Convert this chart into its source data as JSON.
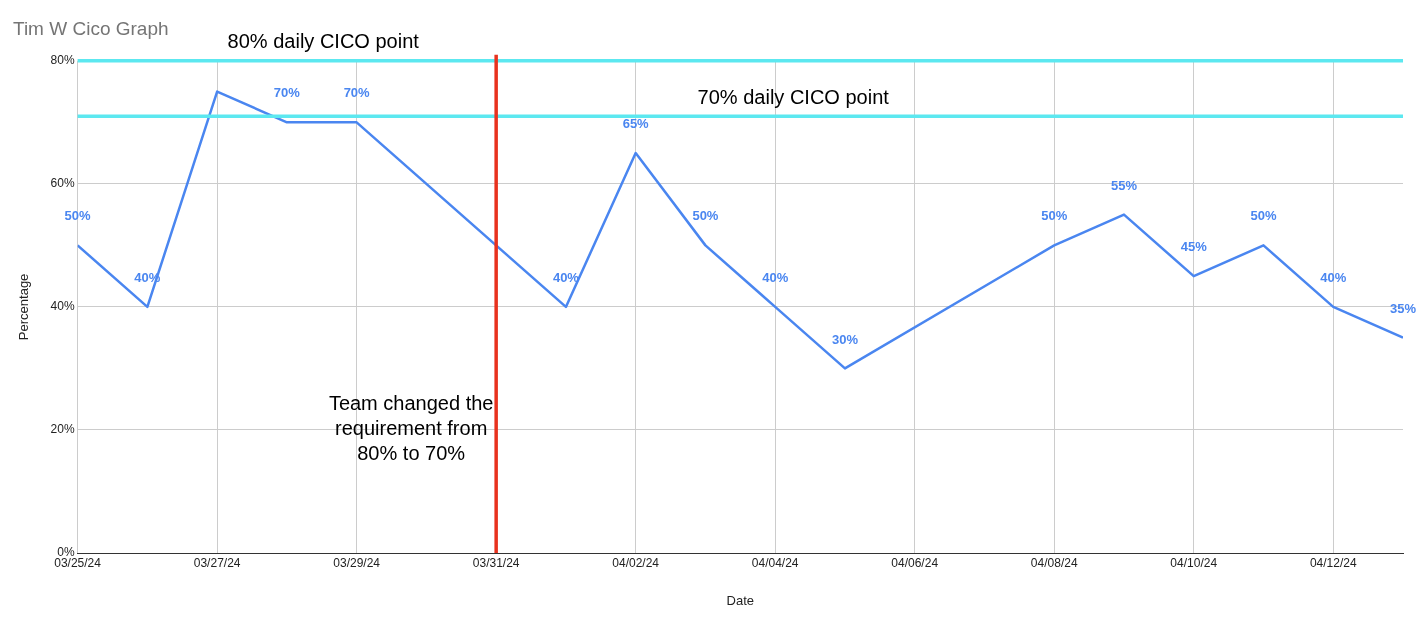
{
  "chart_data": {
    "type": "line",
    "title": "Tim W Cico Graph",
    "xlabel": "Date",
    "ylabel": "Percentage",
    "x": [
      "--03-25",
      "--03-26",
      "--03-27",
      "--03-28",
      "--03-29",
      "--04-01",
      "--04-02",
      "--04-03",
      "--04-04",
      "--04-05",
      "--04-08",
      "--04-09",
      "--04-10",
      "--04-11",
      "--04-12",
      "--04-13"
    ],
    "series": [
      {
        "color": "#4a86f0",
        "values": [
          50,
          40,
          75,
          70,
          70,
          40,
          65,
          50,
          40,
          30,
          50,
          55,
          45,
          50,
          40,
          35
        ],
        "value_labels": [
          "50%",
          "40%",
          null,
          "70%",
          "70%",
          "40%",
          "65%",
          "50%",
          "40%",
          "30%",
          "50%",
          "55%",
          "45%",
          "50%",
          "40%",
          "35%"
        ]
      }
    ],
    "xlim": [
      "--03-25",
      "--04-13"
    ],
    "xticks": [
      {
        "value": "--03-25",
        "label": "03/25/24"
      },
      {
        "value": "--03-27",
        "label": "03/27/24"
      },
      {
        "value": "--03-29",
        "label": "03/29/24"
      },
      {
        "value": "--03-31",
        "label": "03/31/24"
      },
      {
        "value": "--04-02",
        "label": "04/02/24"
      },
      {
        "value": "--04-04",
        "label": "04/04/24"
      },
      {
        "value": "--04-06",
        "label": "04/06/24"
      },
      {
        "value": "--04-08",
        "label": "04/08/24"
      },
      {
        "value": "--04-10",
        "label": "04/10/24"
      },
      {
        "value": "--04-12",
        "label": "04/12/24"
      }
    ],
    "ylim": [
      0,
      80
    ],
    "yticks": [
      {
        "value": 0,
        "label": "0%"
      },
      {
        "value": 20,
        "label": "20%"
      },
      {
        "value": 40,
        "label": "40%"
      },
      {
        "value": 60,
        "label": "60%"
      },
      {
        "value": 80,
        "label": "80%"
      }
    ],
    "ref_lines": [
      {
        "axis": "y",
        "value": 80,
        "label": "80% daily CICO point",
        "color": "#5ce8f0"
      },
      {
        "axis": "y",
        "value": 71,
        "label": "70% daily CICO point",
        "color": "#5ce8f0"
      },
      {
        "axis": "x",
        "value": "--03-31",
        "color": "#e8321e"
      }
    ],
    "annotations": [
      {
        "text": "Team changed the requirement from 80% to 70%",
        "x": "--03-31",
        "y": 20
      }
    ],
    "grid": true,
    "legend": false,
    "marker": "none",
    "line_style": "solid"
  }
}
